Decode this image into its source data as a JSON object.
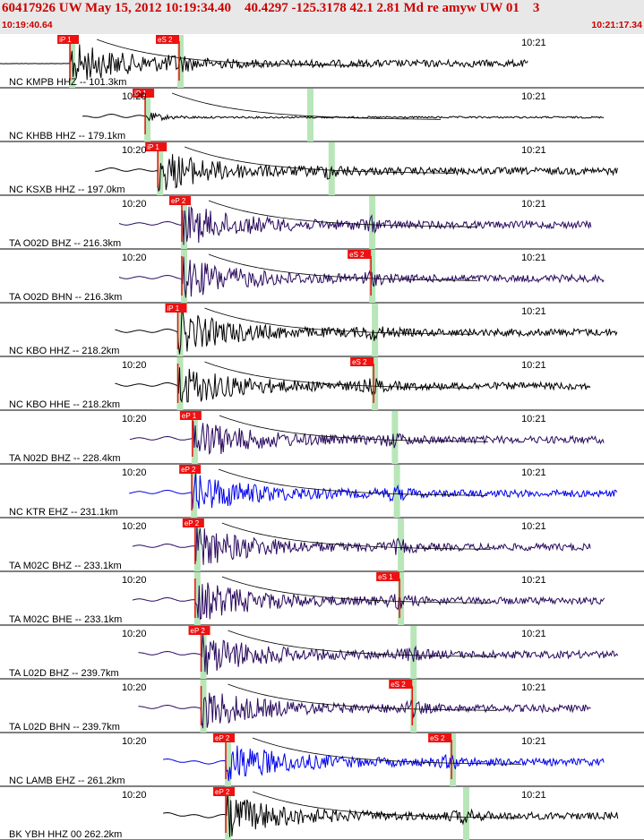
{
  "header": {
    "title": "60417926 UW May 15, 2012 10:19:34.40    40.4297 -125.3178 42.1 2.81 Md re amyw UW 01    3",
    "start_time": "10:19:40.64",
    "end_time": "10:21:17.34"
  },
  "colors": {
    "accent": "#cc0000",
    "pick": "#ee1111",
    "window": "#b8e6b8",
    "trace_black": "#000000",
    "trace_purple": "#2a0a5e",
    "trace_blue": "#0000ee"
  },
  "minute_labels": [
    "10:20",
    "10:21"
  ],
  "traces": [
    {
      "label": "NC KMPB HHZ -- 101.3km",
      "p_label": "iP 1",
      "s_label": "eS 2",
      "color": "black",
      "p_time": 10.5,
      "s_time": 26.9,
      "show_first_minute": false
    },
    {
      "label": "NC KHBB HHZ -- 179.1km",
      "p_label": "iP 1",
      "s_label": "",
      "color": "black",
      "p_time": 21.8,
      "s_time": 46.4,
      "show_first_minute": true
    },
    {
      "label": "NC KSXB HHZ -- 197.0km",
      "p_label": "iP 1",
      "s_label": "",
      "color": "black",
      "p_time": 23.7,
      "s_time": 49.6,
      "show_first_minute": true
    },
    {
      "label": "TA O02D BHZ -- 216.3km",
      "p_label": "eP 2",
      "s_label": "",
      "color": "purple",
      "p_time": 27.3,
      "s_time": 55.7,
      "show_first_minute": true
    },
    {
      "label": "TA O02D BHN -- 216.3km",
      "p_label": "",
      "s_label": "eS 2",
      "color": "purple",
      "p_time": 27.3,
      "s_time": 55.7,
      "show_first_minute": true
    },
    {
      "label": "NC KBO HHZ -- 218.2km",
      "p_label": "iP 1",
      "s_label": "",
      "color": "black",
      "p_time": 26.7,
      "s_time": 56.1,
      "show_first_minute": false
    },
    {
      "label": "NC KBO HHE -- 218.2km",
      "p_label": "",
      "s_label": "eS 2",
      "color": "black",
      "p_time": 26.7,
      "s_time": 56.1,
      "show_first_minute": true
    },
    {
      "label": "TA N02D BHZ -- 228.4km",
      "p_label": "eP 1",
      "s_label": "",
      "color": "purple",
      "p_time": 28.9,
      "s_time": 59.1,
      "show_first_minute": true
    },
    {
      "label": "NC KTR EHZ -- 231.1km",
      "p_label": "eP 2",
      "s_label": "",
      "color": "blue",
      "p_time": 28.8,
      "s_time": 59.4,
      "show_first_minute": true
    },
    {
      "label": "TA M02C BHZ -- 233.1km",
      "p_label": "eP 2",
      "s_label": "",
      "color": "purple",
      "p_time": 29.3,
      "s_time": 60.0,
      "show_first_minute": true
    },
    {
      "label": "TA M02C BHE -- 233.1km",
      "p_label": "",
      "s_label": "eS 1",
      "color": "purple",
      "p_time": 29.3,
      "s_time": 60.0,
      "show_first_minute": true
    },
    {
      "label": "TA L02D BHZ -- 239.7km",
      "p_label": "eP 2",
      "s_label": "",
      "color": "purple",
      "p_time": 30.2,
      "s_time": 61.9,
      "show_first_minute": true
    },
    {
      "label": "TA L02D BHN -- 239.7km",
      "p_label": "",
      "s_label": "eS 2",
      "color": "purple",
      "p_time": 30.2,
      "s_time": 61.9,
      "show_first_minute": true
    },
    {
      "label": "NC LAMB EHZ -- 261.2km",
      "p_label": "eP 2",
      "s_label": "eS 2",
      "color": "blue",
      "p_time": 33.9,
      "s_time": 67.8,
      "show_first_minute": true
    },
    {
      "label": "BK YBH HHZ 00 262.2km",
      "p_label": "eP 2",
      "s_label": "",
      "color": "black",
      "p_time": 33.9,
      "s_time": 69.8,
      "show_first_minute": true
    }
  ]
}
